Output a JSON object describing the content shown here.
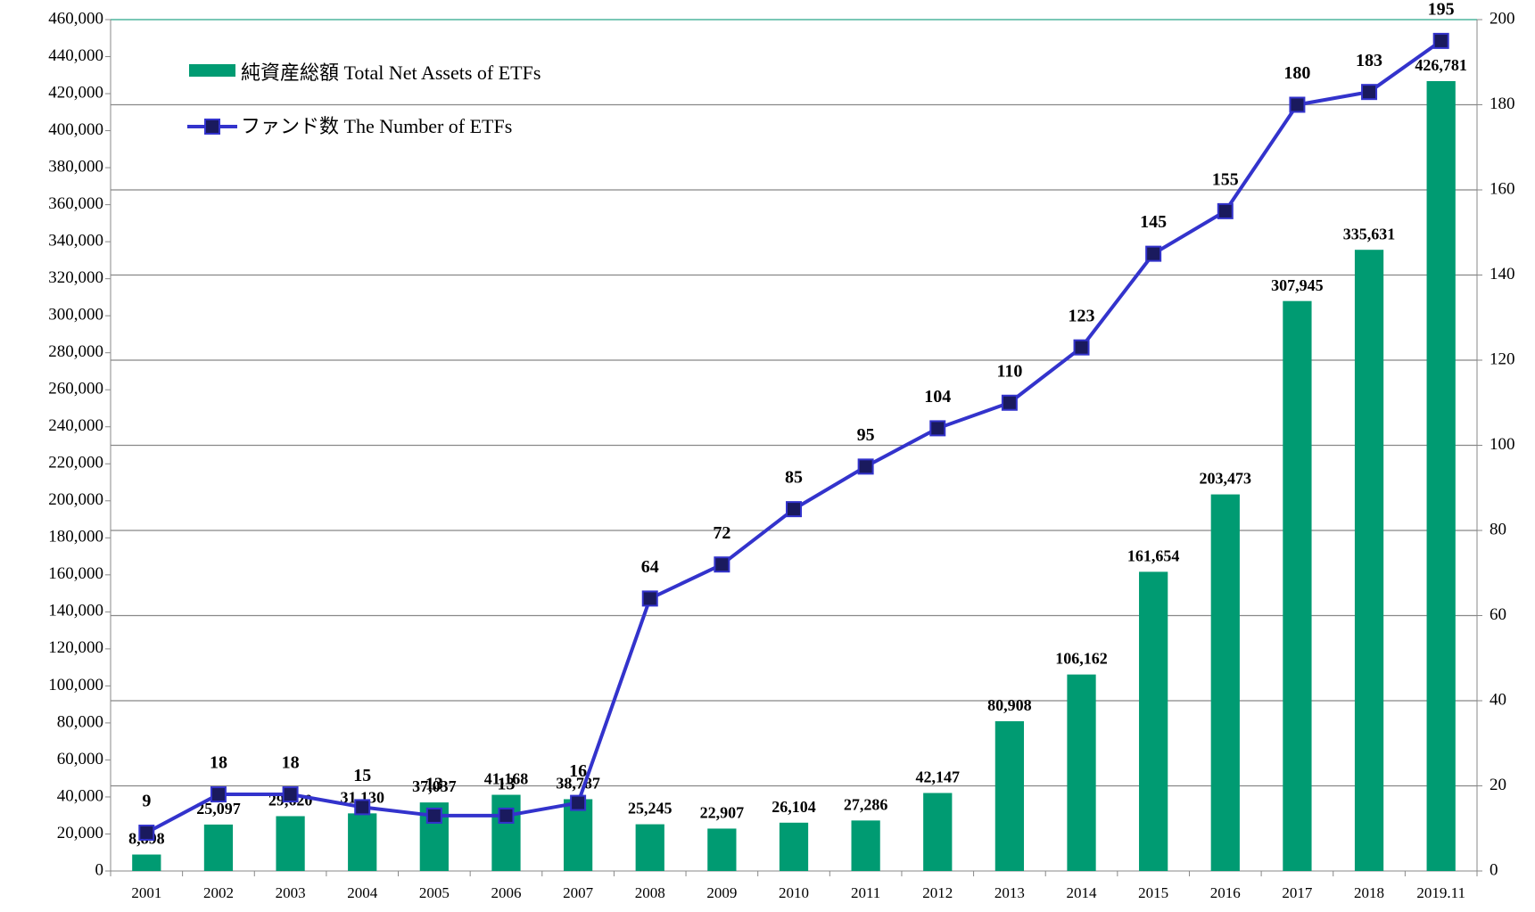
{
  "chart_data": {
    "type": "bar_line",
    "categories": [
      "2001",
      "2002",
      "2003",
      "2004",
      "2005",
      "2006",
      "2007",
      "2008",
      "2009",
      "2010",
      "2011",
      "2012",
      "2013",
      "2014",
      "2015",
      "2016",
      "2017",
      "2018",
      "2019.11"
    ],
    "series": [
      {
        "name": "純資産総額 Total Net Assets of ETFs",
        "type": "bar",
        "color": "#009b72",
        "axis": "y",
        "values": [
          8898,
          25097,
          29620,
          31130,
          37037,
          41168,
          38787,
          25245,
          22907,
          26104,
          27286,
          42147,
          80908,
          106162,
          161654,
          203473,
          307945,
          335631,
          426781
        ],
        "value_labels": [
          "8,898",
          "25,097",
          "29,620",
          "31,130",
          "37,037",
          "41,168",
          "38,787",
          "25,245",
          "22,907",
          "26,104",
          "27,286",
          "42,147",
          "80,908",
          "106,162",
          "161,654",
          "203,473",
          "307,945",
          "335,631",
          "426,781"
        ]
      },
      {
        "name": "ファンド数 The Number of ETFs",
        "type": "line",
        "color": "#3333cc",
        "marker_color": "#1a1a5e",
        "axis": "y2",
        "values": [
          9,
          18,
          18,
          15,
          13,
          13,
          16,
          64,
          72,
          85,
          95,
          104,
          110,
          123,
          145,
          155,
          180,
          183,
          195
        ]
      }
    ],
    "ylim": [
      0,
      460000
    ],
    "yticks": [
      0,
      {
        "value": 20000,
        "label": "20,000"
      },
      {
        "value": 40000,
        "label": "40,000"
      },
      {
        "value": 60000,
        "label": "60,000"
      },
      {
        "value": 80000,
        "label": "80,000"
      },
      {
        "value": 100000,
        "label": "100,000"
      },
      {
        "value": 120000,
        "label": "120,000"
      },
      {
        "value": 140000,
        "label": "140,000"
      },
      {
        "value": 160000,
        "label": "160,000"
      },
      {
        "value": 180000,
        "label": "180,000"
      },
      {
        "value": 200000,
        "label": "200,000"
      },
      {
        "value": 220000,
        "label": "220,000"
      },
      {
        "value": 240000,
        "label": "240,000"
      },
      {
        "value": 260000,
        "label": "260,000"
      },
      {
        "value": 280000,
        "label": "280,000"
      },
      {
        "value": 300000,
        "label": "300,000"
      },
      {
        "value": 320000,
        "label": "320,000"
      },
      {
        "value": 340000,
        "label": "340,000"
      },
      {
        "value": 360000,
        "label": "360,000"
      },
      {
        "value": 380000,
        "label": "380,000"
      },
      {
        "value": 400000,
        "label": "400,000"
      },
      {
        "value": 420000,
        "label": "420,000"
      },
      {
        "value": 440000,
        "label": "440,000"
      },
      {
        "value": 460000,
        "label": "460,000"
      }
    ],
    "y2lim": [
      0,
      200
    ],
    "y2ticks": [
      0,
      20,
      40,
      60,
      80,
      100,
      120,
      140,
      160,
      180,
      200
    ],
    "grid": "y2",
    "legend": "upper left"
  }
}
